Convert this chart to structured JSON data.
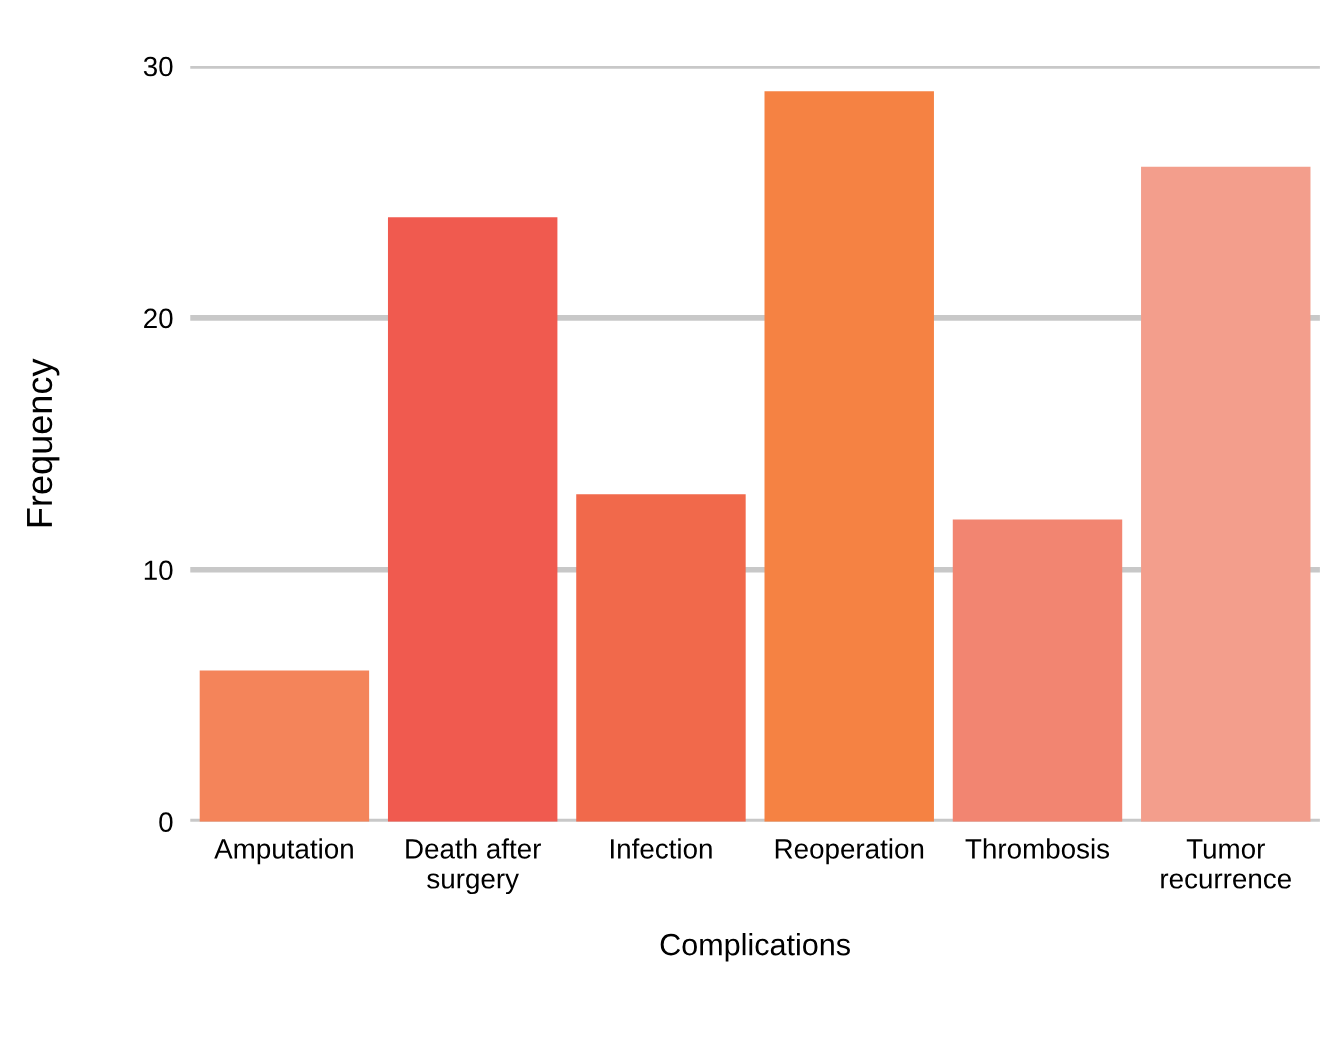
{
  "chart_data": {
    "type": "bar",
    "xlabel": "Complications",
    "ylabel": "Frequency",
    "categories": [
      "Amputation",
      "Death after\nsurgery",
      "Infection",
      "Reoperation",
      "Thrombosis",
      "Tumor\nrecurrence"
    ],
    "values": [
      6,
      24,
      13,
      29,
      12,
      26
    ],
    "colors": [
      "#f4845a",
      "#f05a4f",
      "#f1694b",
      "#f58243",
      "#f28571",
      "#f39e8c"
    ],
    "ylim": [
      0,
      30
    ],
    "yticks": [
      0,
      10,
      20,
      30
    ],
    "grid": "y"
  }
}
